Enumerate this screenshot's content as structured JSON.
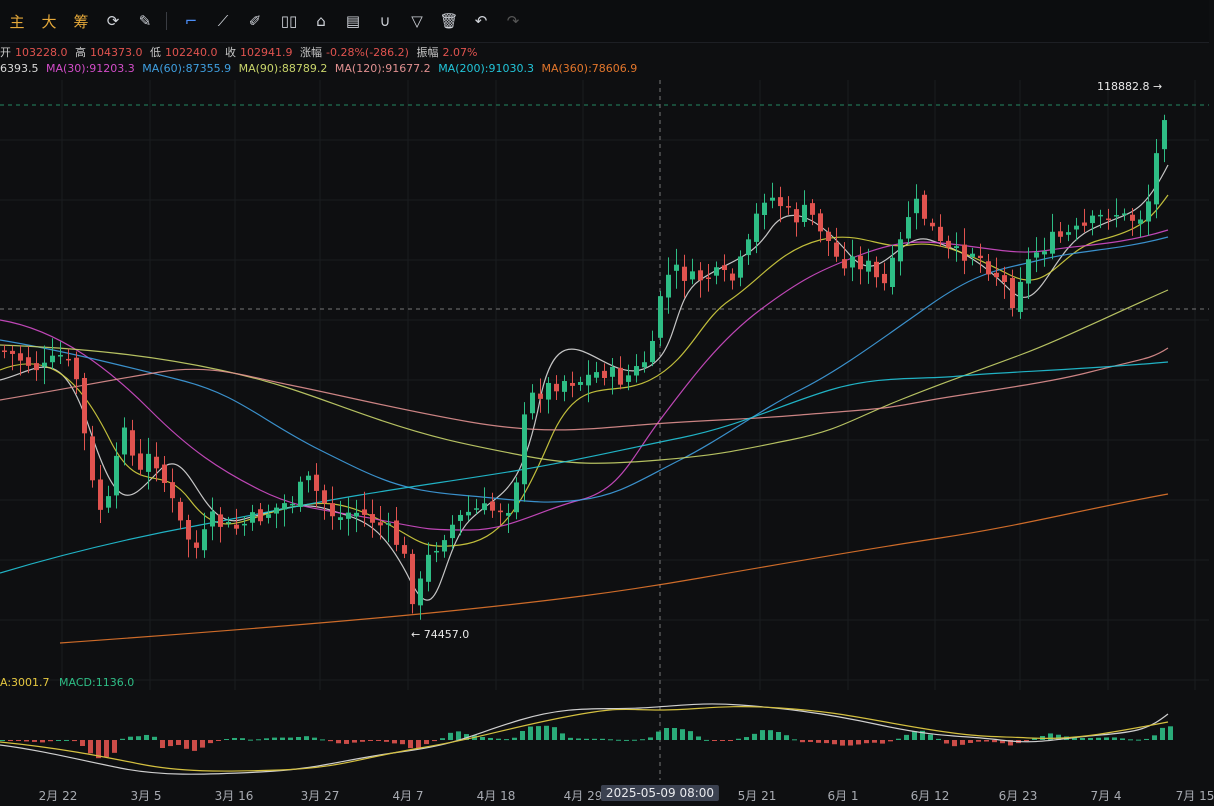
{
  "toolbar": {
    "tabs": [
      {
        "label": "主"
      },
      {
        "label": "大"
      },
      {
        "label": "筹"
      }
    ],
    "icons": [
      "indicator-icon",
      "drawing-tools-icon",
      "cursor-line-icon",
      "ruler-icon",
      "pen-icon",
      "candle-type-icon",
      "lock-icon",
      "notes-icon",
      "magnet-icon",
      "filter-icon",
      "trash-icon",
      "undo-icon",
      "redo-icon"
    ]
  },
  "info": {
    "open_label": "开",
    "open": "103228.0",
    "high_label": "高",
    "high": "104373.0",
    "low_label": "低",
    "low": "102240.0",
    "close_label": "收",
    "close": "102941.9",
    "change_label": "涨幅",
    "change": "-0.28%(-286.2)",
    "amp_label": "振幅",
    "amp": "2.07%"
  },
  "ma": [
    {
      "text": "6393.5",
      "color": "#d9d9d9"
    },
    {
      "text": "MA(30):91203.3",
      "color": "#d24cc8"
    },
    {
      "text": "MA(60):87355.9",
      "color": "#3f9fe0"
    },
    {
      "text": "MA(90):88789.2",
      "color": "#c8d46a"
    },
    {
      "text": "MA(120):91677.2",
      "color": "#e09090"
    },
    {
      "text": "MA(200):91030.3",
      "color": "#22c4d8"
    },
    {
      "text": "MA(360):78606.9",
      "color": "#e2762c"
    }
  ],
  "markers": {
    "high": "118882.8 →",
    "low": "← 74457.0"
  },
  "macd": {
    "dea": "A:3001.7",
    "macd": "MACD:1136.0"
  },
  "xaxis": {
    "ticks": [
      "2月 22",
      "3月 5",
      "3月 16",
      "3月 27",
      "4月 7",
      "4月 18",
      "4月 29",
      "2025-05-09 08:00",
      "5月 21",
      "6月 1",
      "6月 12",
      "6月 23",
      "7月 4",
      "7月 15"
    ]
  },
  "colors": {
    "up": "#2ebd85",
    "down": "#e0534f"
  }
}
